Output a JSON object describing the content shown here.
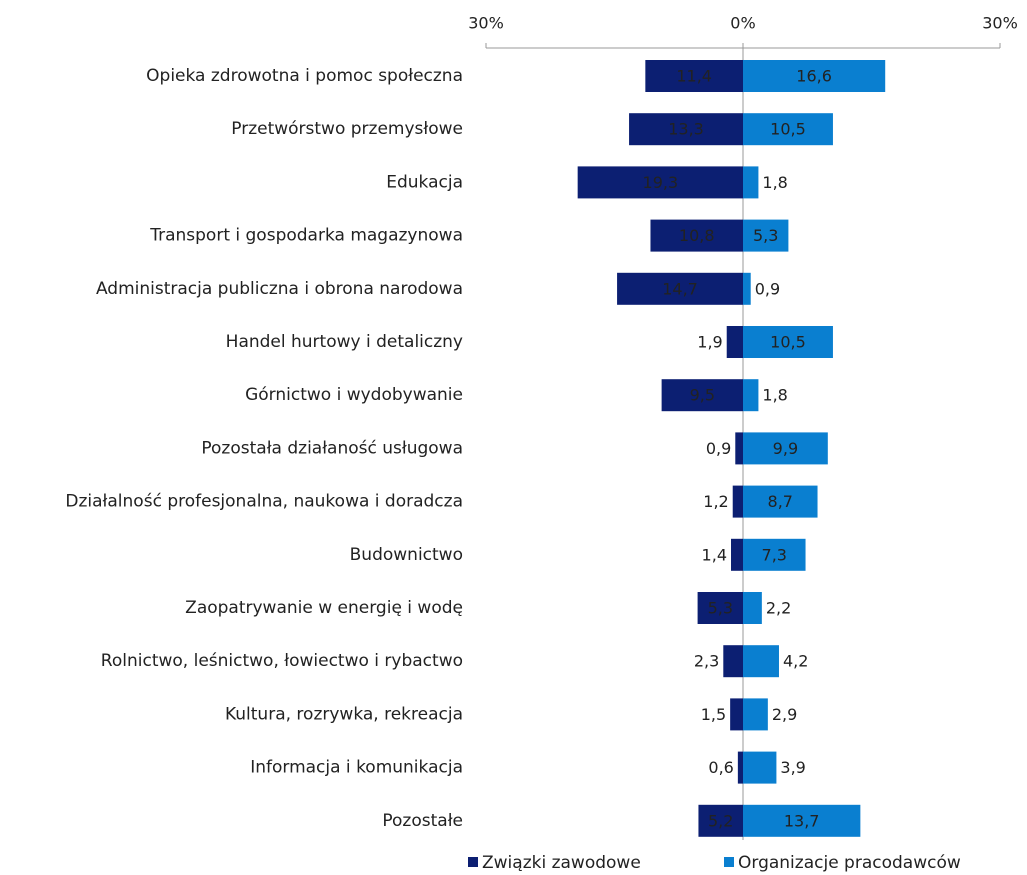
{
  "chart_data": {
    "type": "diverging-bar",
    "categories": [
      "Opieka zdrowotna i pomoc społeczna",
      "Przetwórstwo przemysłowe",
      "Edukacja",
      "Transport i gospodarka magazynowa",
      "Administracja publiczna i obrona narodowa",
      "Handel hurtowy i detaliczny",
      "Górnictwo i wydobywanie",
      "Pozostała działaność usługowa",
      "Działalność profesjonalna, naukowa i doradcza",
      "Budownictwo",
      "Zaopatrywanie w energię i wodę",
      "Rolnictwo, leśnictwo, łowiectwo i rybactwo",
      "Kultura, rozrywka, rekreacja",
      "Informacja i komunikacja",
      "Pozostałe"
    ],
    "series": [
      {
        "name": "Związki zawodowe",
        "color": "#0c1f72",
        "values": [
          -11.4,
          -13.3,
          -19.3,
          -10.8,
          -14.7,
          -1.9,
          -9.5,
          -0.9,
          -1.2,
          -1.4,
          -5.3,
          -2.3,
          -1.5,
          -0.6,
          -5.2
        ],
        "value_labels": [
          "11,4",
          "13,3",
          "19,3",
          "10,8",
          "14,7",
          "1,9",
          "9,5",
          "0,9",
          "1,2",
          "1,4",
          "5,3",
          "2,3",
          "1,5",
          "0,6",
          "5,2"
        ]
      },
      {
        "name": "Organizacje pracodawców",
        "color": "#0a7fd0",
        "values": [
          16.6,
          10.5,
          1.8,
          5.3,
          0.9,
          10.5,
          1.8,
          9.9,
          8.7,
          7.3,
          2.2,
          4.2,
          2.9,
          3.9,
          13.7
        ],
        "value_labels": [
          "16,6",
          "10,5",
          "1,8",
          "5,3",
          "0,9",
          "10,5",
          "1,8",
          "9,9",
          "8,7",
          "7,3",
          "2,2",
          "4,2",
          "2,9",
          "3,9",
          "13,7"
        ]
      }
    ],
    "xlim": [
      -30,
      30
    ],
    "xticks": [
      {
        "value": -30,
        "label": "30%"
      },
      {
        "value": 0,
        "label": "0%"
      },
      {
        "value": 30,
        "label": "30%"
      }
    ]
  }
}
